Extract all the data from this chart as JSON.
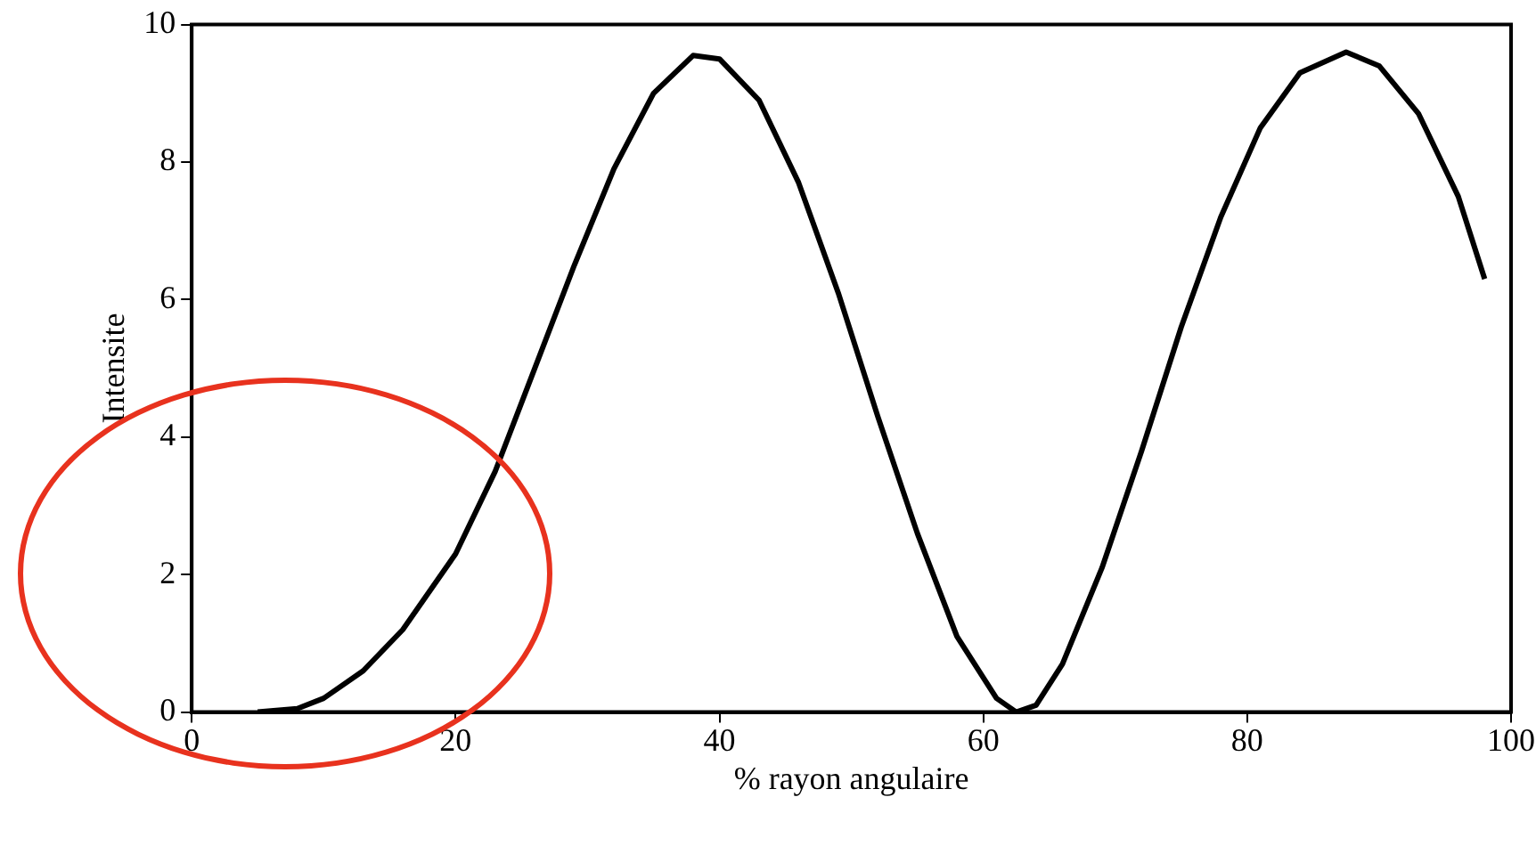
{
  "chart_data": {
    "type": "line",
    "xlabel": "% rayon angulaire",
    "ylabel": "Intensite",
    "x": [
      5,
      8,
      10,
      13,
      16,
      20,
      23,
      26,
      29,
      32,
      35,
      38,
      40,
      43,
      46,
      49,
      52,
      55,
      58,
      61,
      62.5,
      64,
      66,
      69,
      72,
      75,
      78,
      81,
      84,
      87.5,
      90,
      93,
      96,
      98
    ],
    "series": [
      {
        "color": "#000000",
        "values": [
          0,
          0.05,
          0.2,
          0.6,
          1.2,
          2.3,
          3.5,
          5,
          6.5,
          7.9,
          9,
          9.55,
          9.5,
          8.9,
          7.7,
          6.1,
          4.3,
          2.6,
          1.1,
          0.2,
          0,
          0.1,
          0.7,
          2.1,
          3.8,
          5.6,
          7.2,
          8.5,
          9.3,
          9.6,
          9.4,
          8.7,
          7.5,
          6.3
        ]
      }
    ],
    "xlim": [
      0,
      100
    ],
    "xticks": [
      0,
      20,
      40,
      60,
      80,
      100
    ],
    "ylim": [
      0,
      10
    ],
    "yticks": [
      0,
      2,
      4,
      6,
      8,
      10
    ],
    "grid": false,
    "legend": false,
    "marker": "none",
    "line_style": "solid"
  }
}
